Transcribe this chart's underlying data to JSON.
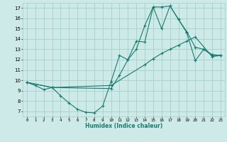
{
  "title": "",
  "xlabel": "Humidex (Indice chaleur)",
  "xlim": [
    -0.5,
    23.5
  ],
  "ylim": [
    6.5,
    17.5
  ],
  "xticks": [
    0,
    1,
    2,
    3,
    4,
    5,
    6,
    7,
    8,
    9,
    10,
    11,
    12,
    13,
    14,
    15,
    16,
    17,
    18,
    19,
    20,
    21,
    22,
    23
  ],
  "yticks": [
    7,
    8,
    9,
    10,
    11,
    12,
    13,
    14,
    15,
    16,
    17
  ],
  "bg_color": "#ceeae8",
  "grid_color": "#a8d4d0",
  "line_color": "#1a7a6e",
  "series": [
    {
      "x": [
        0,
        1,
        2,
        3,
        4,
        5,
        6,
        7,
        8,
        9,
        10,
        11,
        12,
        13,
        14,
        15,
        16,
        17,
        18,
        19,
        20,
        21,
        22,
        23
      ],
      "y": [
        9.8,
        9.5,
        9.1,
        9.3,
        8.5,
        7.8,
        7.2,
        6.9,
        6.85,
        7.5,
        9.9,
        12.4,
        12.0,
        13.8,
        13.7,
        17.1,
        17.1,
        17.2,
        15.9,
        14.6,
        11.9,
        13.0,
        12.4,
        12.4
      ]
    },
    {
      "x": [
        0,
        3,
        10,
        14,
        15,
        16,
        17,
        18,
        19,
        20,
        22,
        23
      ],
      "y": [
        9.8,
        9.3,
        9.5,
        11.5,
        12.1,
        12.6,
        13.0,
        13.4,
        13.8,
        14.2,
        12.3,
        12.4
      ]
    },
    {
      "x": [
        0,
        3,
        10,
        11,
        12,
        13,
        14,
        15,
        16,
        17,
        18,
        19,
        20,
        21,
        22,
        23
      ],
      "y": [
        9.8,
        9.3,
        9.2,
        10.5,
        12.0,
        13.0,
        15.3,
        17.1,
        15.0,
        17.2,
        15.9,
        14.7,
        13.2,
        13.0,
        12.5,
        12.4
      ]
    }
  ]
}
